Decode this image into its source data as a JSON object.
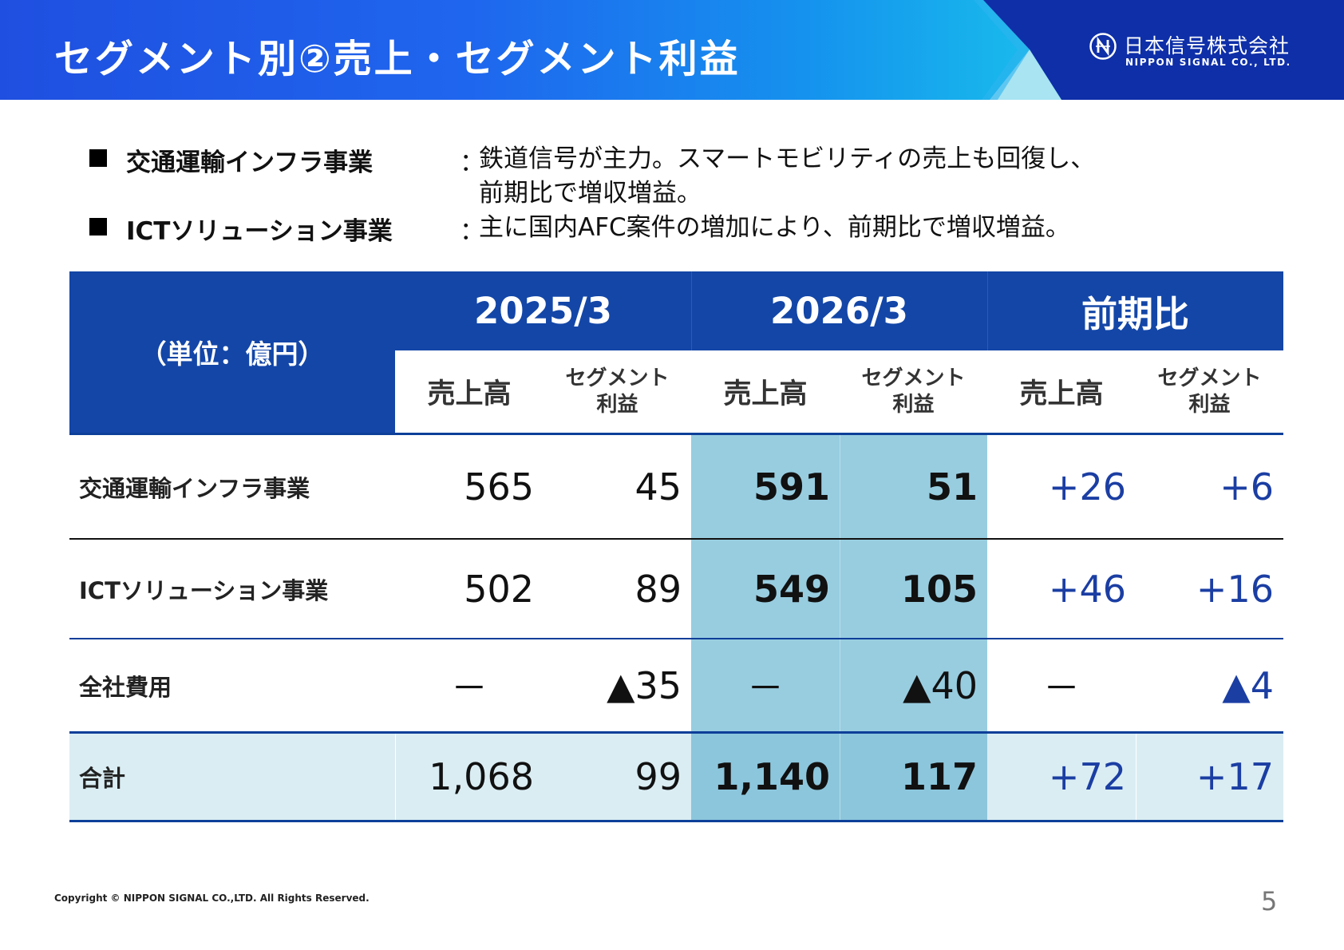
{
  "header": {
    "title": "セグメント別②売上・セグメント利益",
    "logo_jp": "日本信号株式会社",
    "logo_en": "NIPPON SIGNAL CO., LTD.",
    "colors": {
      "banner_start": "#1f4fe0",
      "banner_end": "#1fc3ee",
      "logo_bg": "#0e2fa8"
    }
  },
  "summary": [
    {
      "name": "交通運輸インフラ事業",
      "colon": "：",
      "desc_line1": "鉄道信号が主力。スマートモビリティの売上も回復し、",
      "desc_line2": "前期比で増収増益。"
    },
    {
      "name": "ICTソリューション事業",
      "colon": "：",
      "desc_line1": "主に国内AFC案件の増加により、前期比で増収増益。"
    }
  ],
  "table": {
    "unit_label": "（単位：億円）",
    "period_headers": [
      "2025/3",
      "2026/3",
      "前期比"
    ],
    "sub_headers": {
      "sales": "売上高",
      "profit_line1": "セグメント",
      "profit_line2": "利益"
    },
    "rows": [
      {
        "label": "交通運輸インフラ事業",
        "v": [
          "565",
          "45",
          "591",
          "51",
          "+26",
          "+6"
        ]
      },
      {
        "label": "ICTソリューション事業",
        "v": [
          "502",
          "89",
          "549",
          "105",
          "+46",
          "+16"
        ]
      },
      {
        "label": "全社費用",
        "v": [
          "－",
          "▲35",
          "－",
          "▲40",
          "－",
          "▲4"
        ]
      },
      {
        "label": "合計",
        "v": [
          "1,068",
          "99",
          "1,140",
          "117",
          "+72",
          "+17"
        ]
      }
    ],
    "colors": {
      "header": "#1346a7",
      "highlight": "#98cde0",
      "total_row": "#daedf3",
      "change_text": "#1b3ea3"
    }
  },
  "footer": {
    "copyright": "Copyright © NIPPON SIGNAL CO.,LTD. All Rights Reserved.",
    "page_number": "5"
  }
}
